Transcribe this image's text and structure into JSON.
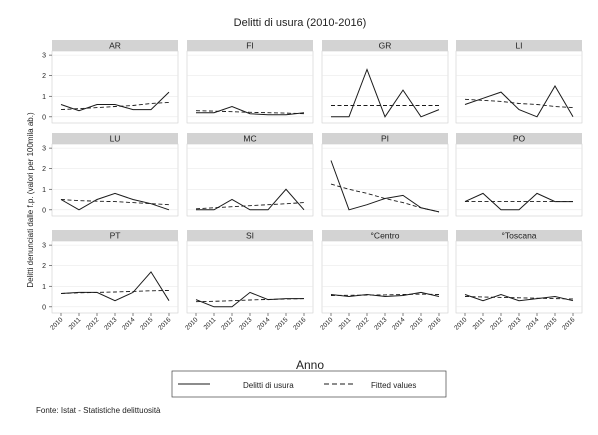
{
  "chart_data": {
    "type": "line",
    "title": "Delitti di usura (2010-2016)",
    "xlabel": "Anno",
    "ylabel": "Delitti denunciati dalle f.p. (valori per 100mila ab.)",
    "x": [
      "2010",
      "2011",
      "2012",
      "2013",
      "2014",
      "2015",
      "2016"
    ],
    "yticks": [
      "0",
      "1",
      "2",
      "3"
    ],
    "ylim": [
      -0.3,
      3.2
    ],
    "grid": true,
    "legend_position": "bottom",
    "legend": [
      "Delitti di usura",
      "Fitted values"
    ],
    "colors": {
      "line": "#1a1a1a",
      "panel_header": "#d3d3d3",
      "panel_border": "#cfcfcf",
      "grid": "#e6e6e6"
    },
    "panels": [
      {
        "name": "AR",
        "observed": [
          0.6,
          0.3,
          0.6,
          0.6,
          0.35,
          0.35,
          1.2
        ],
        "fitted": [
          0.35,
          0.4,
          0.45,
          0.5,
          0.55,
          0.65,
          0.7
        ]
      },
      {
        "name": "FI",
        "observed": [
          0.2,
          0.2,
          0.5,
          0.15,
          0.1,
          0.1,
          0.2
        ],
        "fitted": [
          0.3,
          0.28,
          0.25,
          0.22,
          0.2,
          0.18,
          0.15
        ]
      },
      {
        "name": "GR",
        "observed": [
          0.0,
          0.0,
          2.3,
          0.0,
          1.3,
          0.0,
          0.35
        ],
        "fitted": [
          0.55,
          0.55,
          0.55,
          0.55,
          0.55,
          0.55,
          0.55
        ]
      },
      {
        "name": "LI",
        "observed": [
          0.6,
          0.9,
          1.2,
          0.35,
          0.0,
          1.5,
          0.0
        ],
        "fitted": [
          0.85,
          0.8,
          0.75,
          0.65,
          0.6,
          0.5,
          0.45
        ]
      },
      {
        "name": "LU",
        "observed": [
          0.5,
          0.0,
          0.5,
          0.8,
          0.5,
          0.3,
          0.0
        ],
        "fitted": [
          0.5,
          0.45,
          0.42,
          0.4,
          0.35,
          0.3,
          0.25
        ]
      },
      {
        "name": "MC",
        "observed": [
          0.0,
          0.0,
          0.5,
          0.0,
          0.0,
          1.0,
          0.0
        ],
        "fitted": [
          0.05,
          0.1,
          0.15,
          0.2,
          0.25,
          0.3,
          0.35
        ]
      },
      {
        "name": "PI",
        "observed": [
          2.4,
          0.0,
          0.25,
          0.55,
          0.7,
          0.1,
          -0.1
        ],
        "fitted": [
          1.25,
          1.0,
          0.8,
          0.55,
          0.35,
          0.1,
          -0.1
        ]
      },
      {
        "name": "PO",
        "observed": [
          0.4,
          0.8,
          0.0,
          0.0,
          0.8,
          0.4,
          0.4
        ],
        "fitted": [
          0.4,
          0.4,
          0.4,
          0.4,
          0.4,
          0.4,
          0.4
        ]
      },
      {
        "name": "PT",
        "observed": [
          0.65,
          0.7,
          0.7,
          0.3,
          0.7,
          1.7,
          0.3
        ],
        "fitted": [
          0.65,
          0.68,
          0.7,
          0.72,
          0.75,
          0.78,
          0.8
        ]
      },
      {
        "name": "SI",
        "observed": [
          0.35,
          0.0,
          0.0,
          0.7,
          0.35,
          0.4,
          0.4
        ],
        "fitted": [
          0.25,
          0.27,
          0.3,
          0.33,
          0.36,
          0.38,
          0.4
        ]
      },
      {
        "name": "°Centro",
        "observed": [
          0.6,
          0.5,
          0.6,
          0.5,
          0.55,
          0.7,
          0.5
        ],
        "fitted": [
          0.55,
          0.56,
          0.57,
          0.58,
          0.6,
          0.62,
          0.6
        ]
      },
      {
        "name": "°Toscana",
        "observed": [
          0.6,
          0.3,
          0.6,
          0.3,
          0.4,
          0.5,
          0.3
        ],
        "fitted": [
          0.5,
          0.48,
          0.46,
          0.44,
          0.42,
          0.4,
          0.38
        ]
      }
    ]
  },
  "footer": {
    "source": "Fonte: Istat - Statistiche delittuosità"
  }
}
